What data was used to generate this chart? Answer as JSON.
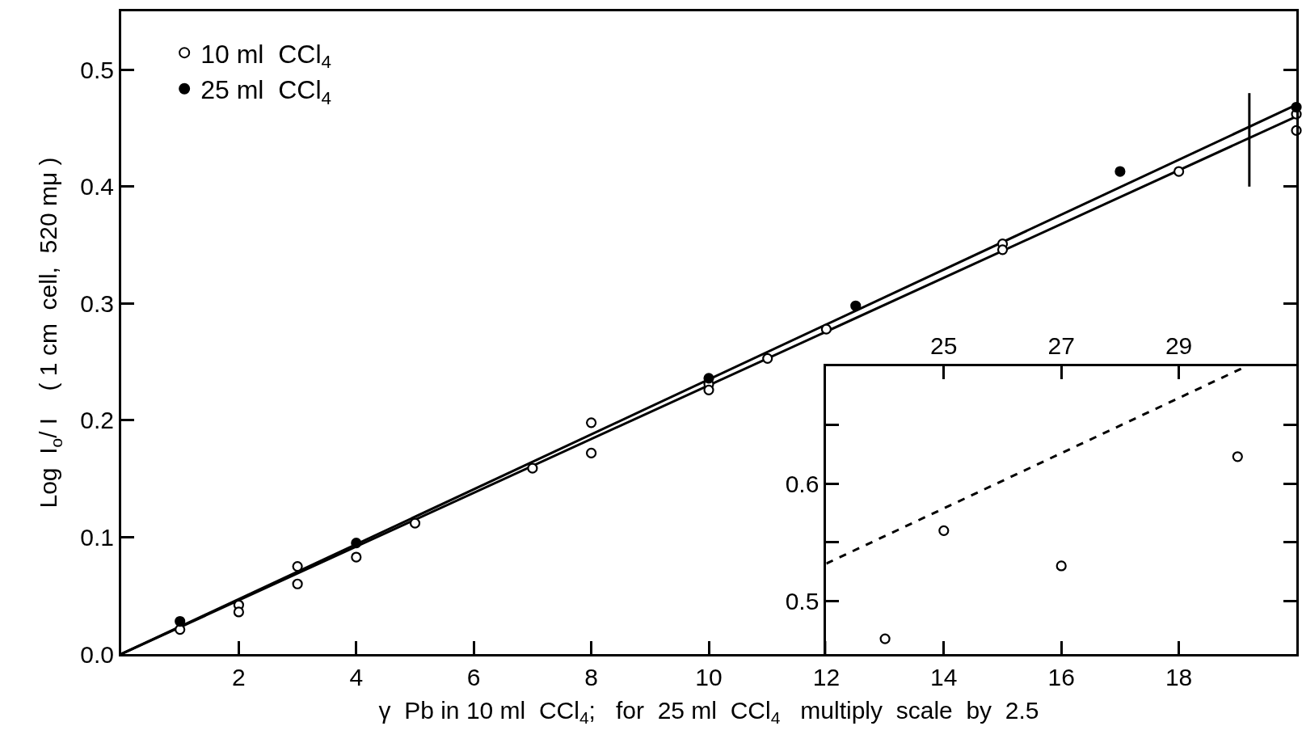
{
  "chart_data": [
    {
      "type": "scatter",
      "xlabel": "γ  Pb in 10 ml  CCl$_{4}$;   for  25 ml  CCl$_{4}$   multiply  scale  by  2.5",
      "ylabel": "Log  I$_{o}$/ I    ( 1 cm  cell,  520 mμ )",
      "xlim": [
        0,
        20
      ],
      "xticks": [
        2,
        4,
        6,
        8,
        10,
        12,
        14,
        16,
        18
      ],
      "ylim": [
        0,
        0.55
      ],
      "yticks": [
        {
          "value": 0,
          "label": "0.0"
        },
        0.1,
        0.2,
        0.3,
        0.4,
        0.5
      ],
      "legend": "top left",
      "series": [
        {
          "name": "10 ml  CCl$_{4}$",
          "marker": "circle",
          "color": "#ffffff",
          "x": [
            1,
            2,
            2,
            3,
            3,
            4,
            5,
            7,
            8,
            8,
            10,
            10,
            11,
            12,
            15,
            15,
            18,
            20,
            20
          ],
          "values": [
            0.021,
            0.042,
            0.036,
            0.075,
            0.06,
            0.083,
            0.112,
            0.159,
            0.198,
            0.172,
            0.231,
            0.226,
            0.253,
            0.278,
            0.351,
            0.346,
            0.413,
            0.462,
            0.448
          ]
        },
        {
          "name": "25 ml  CCl$_{4}$",
          "marker": "circle",
          "color": "#000000",
          "x": [
            1,
            4,
            10,
            12.5,
            17,
            20
          ],
          "values": [
            0.028,
            0.095,
            0.236,
            0.298,
            0.413,
            0.468
          ]
        },
        {
          "type": "line",
          "color": "#000000",
          "line_style": "solid",
          "x": [
            0,
            20
          ],
          "values": [
            0,
            0.46
          ]
        },
        {
          "type": "line",
          "color": "#000000",
          "line_style": "solid",
          "x": [
            0,
            20
          ],
          "values": [
            0,
            0.47
          ]
        },
        {
          "type": "line",
          "color": "#000000",
          "line_style": "solid",
          "x": [
            19.2,
            19.2
          ],
          "values": [
            0.4,
            0.48
          ]
        }
      ]
    },
    {
      "type": "scatter",
      "xlim": [
        23,
        31
      ],
      "xticks": [
        25,
        27,
        29
      ],
      "ylim": [
        0.455,
        0.7
      ],
      "yticks": [
        0.5,
        {
          "value": 0.55,
          "label": null
        },
        0.6,
        {
          "value": 0.65,
          "label": null
        }
      ],
      "series": [
        {
          "marker": "circle",
          "color": "#ffffff",
          "x": [
            24,
            25,
            27,
            30
          ],
          "values": [
            0.468,
            0.56,
            0.53,
            0.623
          ]
        },
        {
          "type": "line",
          "color": "#000000",
          "line_style": "dashed",
          "x": [
            23,
            30.07
          ],
          "values": [
            0.532,
            0.698
          ]
        }
      ]
    }
  ]
}
